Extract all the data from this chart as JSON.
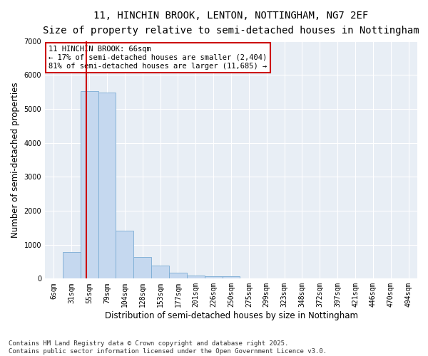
{
  "title_line1": "11, HINCHIN BROOK, LENTON, NOTTINGHAM, NG7 2EF",
  "title_line2": "Size of property relative to semi-detached houses in Nottingham",
  "xlabel": "Distribution of semi-detached houses by size in Nottingham",
  "ylabel": "Number of semi-detached properties",
  "categories": [
    "6sqm",
    "31sqm",
    "55sqm",
    "79sqm",
    "104sqm",
    "128sqm",
    "153sqm",
    "177sqm",
    "201sqm",
    "226sqm",
    "250sqm",
    "275sqm",
    "299sqm",
    "323sqm",
    "348sqm",
    "372sqm",
    "397sqm",
    "421sqm",
    "446sqm",
    "470sqm",
    "494sqm"
  ],
  "values": [
    15,
    790,
    5530,
    5480,
    1420,
    630,
    390,
    170,
    100,
    75,
    60,
    0,
    0,
    0,
    0,
    0,
    0,
    0,
    0,
    0,
    0
  ],
  "bar_color": "#c5d8ef",
  "bar_edge_color": "#7aacd4",
  "vline_x_index": 1.85,
  "vline_color": "#cc0000",
  "annotation_text": "11 HINCHIN BROOK: 66sqm\n← 17% of semi-detached houses are smaller (2,404)\n81% of semi-detached houses are larger (11,685) →",
  "box_color": "#cc0000",
  "ylim": [
    0,
    7000
  ],
  "yticks": [
    0,
    1000,
    2000,
    3000,
    4000,
    5000,
    6000,
    7000
  ],
  "background_color": "#e8eef5",
  "footer_line1": "Contains HM Land Registry data © Crown copyright and database right 2025.",
  "footer_line2": "Contains public sector information licensed under the Open Government Licence v3.0.",
  "title_fontsize": 10,
  "subtitle_fontsize": 9,
  "axis_label_fontsize": 8.5,
  "tick_fontsize": 7,
  "annotation_fontsize": 7.5,
  "footer_fontsize": 6.5
}
